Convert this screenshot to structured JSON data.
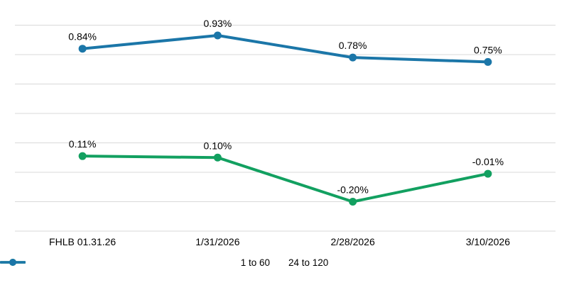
{
  "chart_data": {
    "type": "line",
    "categories": [
      "FHLB 01.31.26",
      "1/31/2026",
      "2/28/2026",
      "3/10/2026"
    ],
    "series": [
      {
        "name": "1 to 60",
        "color": "#12a060",
        "values": [
          0.11,
          0.1,
          -0.2,
          -0.01
        ],
        "point_labels": [
          "0.11%",
          "0.10%",
          "-0.20%",
          "-0.01%"
        ]
      },
      {
        "name": "24 to 120",
        "color": "#1b76a8",
        "values": [
          0.84,
          0.93,
          0.78,
          0.75
        ],
        "point_labels": [
          "0.84%",
          "0.93%",
          "0.78%",
          "0.75%"
        ]
      }
    ],
    "title": "",
    "xlabel": "",
    "ylabel": "",
    "ylim": [
      -0.4,
      1.0
    ],
    "grid": true,
    "grid_step": 0.2,
    "grid_color": "#d9d9d9",
    "text_color": "#000000",
    "background": "#ffffff",
    "legend_position": "bottom",
    "legend_entries": [
      "1 to 60",
      "24 to 120"
    ]
  }
}
